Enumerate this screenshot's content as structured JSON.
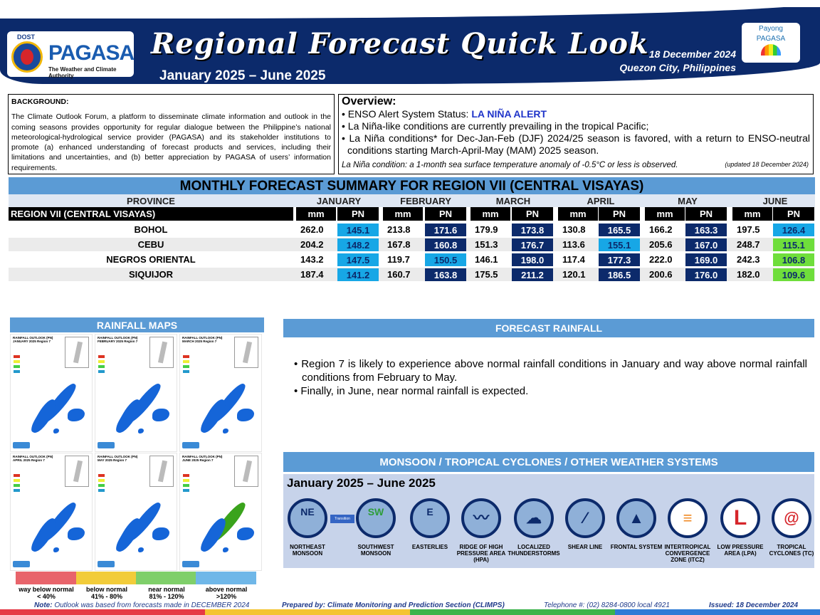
{
  "header": {
    "agency_short": "PAGASA",
    "dost": "DOST",
    "tagline": "The Weather and Climate Authority",
    "title": "Regional Forecast Quick Look",
    "period": "January 2025 – June 2025",
    "date": "18 December 2024",
    "place": "Quezon City, Philippines",
    "payong_top": "Payong",
    "payong_bottom": "PAGASA"
  },
  "background": {
    "title": "BACKGROUND:",
    "text": "The Climate Outlook Forum, a platform to disseminate climate information and outlook in the coming seasons provides opportunity for regular dialogue between the Philippine’s national meteorological-hydrological service provider (PAGASA) and its stakeholder institutions to promote (a) enhanced understanding of forecast products and services, including their limitations and uncertainties, and (b) better appreciation by PAGASA of users’ information requirements."
  },
  "overview": {
    "title": "Overview:",
    "status_label": "ENSO Alert System Status: ",
    "status_value": "LA NIÑA ALERT",
    "bullet2": "La Niña-like conditions are currently prevailing in the tropical Pacific;",
    "bullet3": "La Niña conditions* for Dec-Jan-Feb (DJF) 2024/25 season is favored, with a return to ENSO-neutral conditions starting March-April-May (MAM) 2025 season.",
    "note": "La Niña condition: a 1-month sea surface temperature anomaly of -0.5°C or less is observed.",
    "updated": "(updated 18 December 2024)"
  },
  "table": {
    "title": "MONTHLY FORECAST SUMMARY FOR REGION VII (CENTRAL VISAYAS)",
    "province_header": "PROVINCE",
    "region_label": "REGION VII (CENTRAL VISAYAS)",
    "months": [
      "JANUARY",
      "FEBRUARY",
      "MARCH",
      "APRIL",
      "MAY",
      "JUNE"
    ],
    "mm_label": "mm",
    "pn_label": "PN",
    "rows": [
      {
        "province": "BOHOL",
        "mm": [
          "262.0",
          "213.8",
          "179.9",
          "130.8",
          "166.2",
          "197.5"
        ],
        "pn": [
          "145.1",
          "171.6",
          "173.8",
          "165.5",
          "163.3",
          "126.4"
        ],
        "cls": [
          "an",
          "wan",
          "wan",
          "wan",
          "wan",
          "an"
        ]
      },
      {
        "province": "CEBU",
        "mm": [
          "204.2",
          "167.8",
          "151.3",
          "113.6",
          "205.6",
          "248.7"
        ],
        "pn": [
          "148.2",
          "160.8",
          "176.7",
          "155.1",
          "167.0",
          "115.1"
        ],
        "cls": [
          "an",
          "wan",
          "wan",
          "an",
          "wan",
          "nn"
        ]
      },
      {
        "province": "NEGROS ORIENTAL",
        "mm": [
          "143.2",
          "119.7",
          "146.1",
          "117.4",
          "222.0",
          "242.3"
        ],
        "pn": [
          "147.5",
          "150.5",
          "198.0",
          "177.3",
          "169.0",
          "106.8"
        ],
        "cls": [
          "an",
          "an",
          "wan",
          "wan",
          "wan",
          "nn"
        ]
      },
      {
        "province": "SIQUIJOR",
        "mm": [
          "187.4",
          "160.7",
          "175.5",
          "120.1",
          "200.6",
          "182.0"
        ],
        "pn": [
          "141.2",
          "163.8",
          "211.2",
          "186.5",
          "176.0",
          "109.6"
        ],
        "cls": [
          "an",
          "wan",
          "wan",
          "wan",
          "wan",
          "nn"
        ]
      }
    ]
  },
  "rainfall_maps": {
    "title": "RAINFALL MAPS",
    "maps": [
      {
        "title": "RAINFALL OUTLOOK (PN) JANUARY 2025 Region 7"
      },
      {
        "title": "RAINFALL OUTLOOK (PN) FEBRUARY 2025 Region 7"
      },
      {
        "title": "RAINFALL OUTLOOK (PN) MARCH 2025 Region 7"
      },
      {
        "title": "RAINFALL OUTLOOK (PN) APRIL 2025 Region 7"
      },
      {
        "title": "RAINFALL OUTLOOK (PN) MAY 2025 Region 7"
      },
      {
        "title": "RAINFALL OUTLOOK (PN) JUNE 2025 Region 7"
      }
    ],
    "legend": [
      {
        "label": "way below normal",
        "range": "< 40%",
        "color": "#e8646b"
      },
      {
        "label": "below normal",
        "range": "41% - 80%",
        "color": "#f2cc3a"
      },
      {
        "label": "near normal",
        "range": "81% - 120%",
        "color": "#7fcf6a"
      },
      {
        "label": "above normal",
        "range": ">120%",
        "color": "#6fb7e8"
      }
    ]
  },
  "forecast_rainfall": {
    "title": "FORECAST RAINFALL",
    "items": [
      "Region 7 is likely to experience above normal rainfall conditions in January and way above normal rainfall conditions from February to May.",
      "Finally, in June, near normal rainfall is expected."
    ]
  },
  "weather_systems": {
    "title": "MONSOON / TROPICAL CYCLONES / OTHER WEATHER SYSTEMS",
    "period": "January 2025 – June 2025",
    "transition": "Transition",
    "items": [
      {
        "glyph": "NE",
        "label": "NORTHEAST MONSOON"
      },
      {
        "glyph": "SW",
        "label": "SOUTHWEST MONSOON"
      },
      {
        "glyph": "E",
        "label": "EASTERLIES"
      },
      {
        "glyph": "〰",
        "label": "RIDGE OF HIGH PRESSURE AREA (HPA)"
      },
      {
        "glyph": "☁",
        "label": "LOCALIZED THUNDERSTORMS"
      },
      {
        "glyph": "⁄",
        "label": "SHEAR LINE"
      },
      {
        "glyph": "▲",
        "label": "FRONTAL SYSTEM"
      },
      {
        "glyph": "≡",
        "label": "INTERTROPICAL CONVERGENCE ZONE (ITCZ)"
      },
      {
        "glyph": "L",
        "label": "LOW PRESSURE AREA (LPA)"
      },
      {
        "glyph": "@",
        "label": "TROPICAL CYCLONES (TC)"
      }
    ]
  },
  "footer": {
    "note_label": "Note:",
    "note": " Outlook was based from forecasts made in DECEMBER 2024",
    "prepared": "Prepared by: Climate Monitoring and Prediction Section (CLIMPS)",
    "telephone": "Telephone #: (02) 8284-0800 local 4921",
    "issued": "Issued: 18 December 2024"
  }
}
